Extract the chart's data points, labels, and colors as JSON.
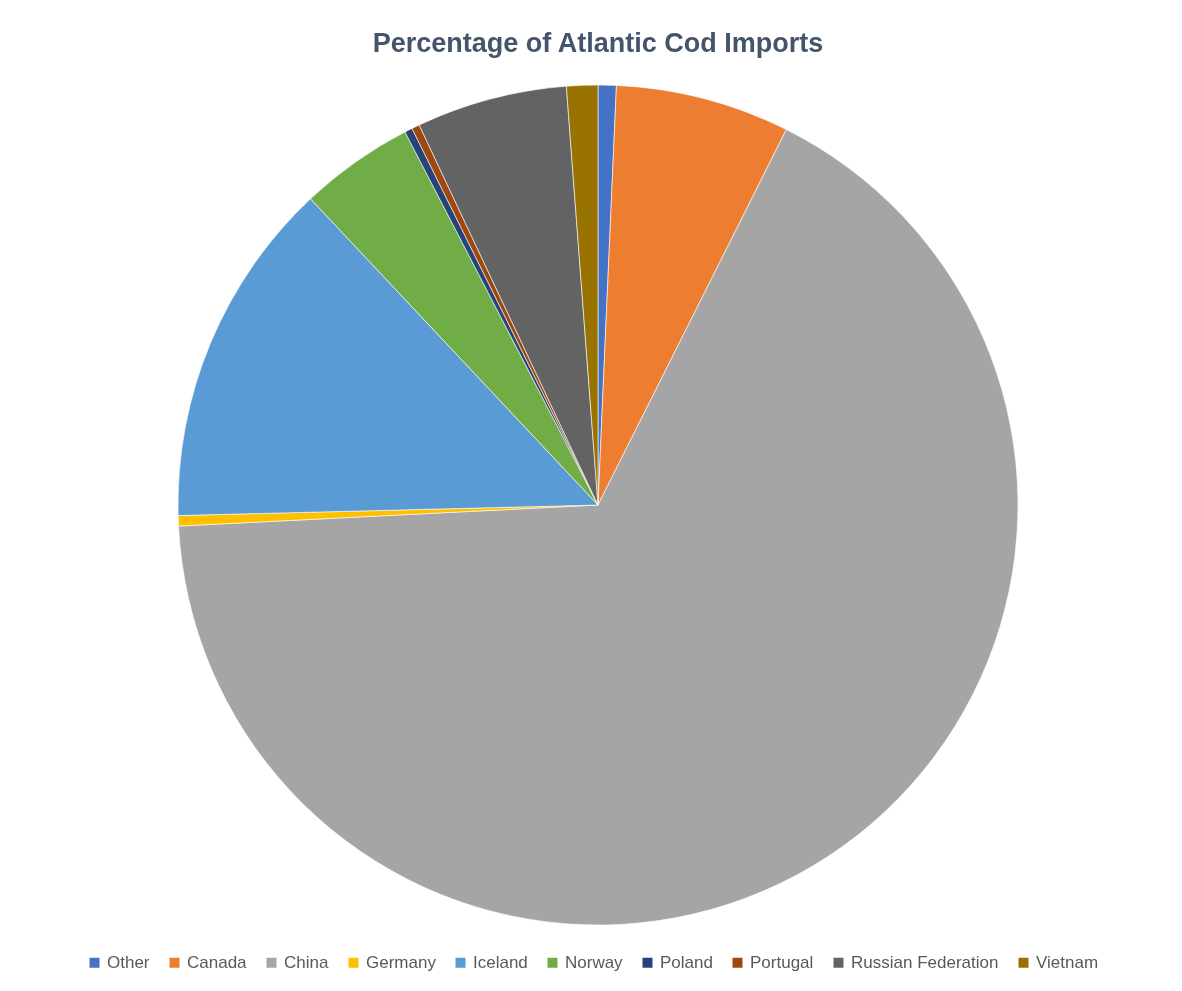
{
  "chart_data": {
    "type": "pie",
    "title": "Percentage of Atlantic Cod Imports",
    "categories": [
      "Other",
      "Canada",
      "China",
      "Germany",
      "Iceland",
      "Norway",
      "Poland",
      "Portugal",
      "Russian Federation",
      "Vietnam"
    ],
    "values": [
      0.7,
      6.7,
      66.8,
      0.4,
      13.4,
      4.4,
      0.3,
      0.3,
      5.8,
      1.2
    ],
    "colors": [
      "#4472c4",
      "#ed7d31",
      "#a5a5a5",
      "#ffc000",
      "#5b9bd5",
      "#70ad47",
      "#264478",
      "#9e480e",
      "#636363",
      "#997300"
    ],
    "legend": "bottom"
  }
}
